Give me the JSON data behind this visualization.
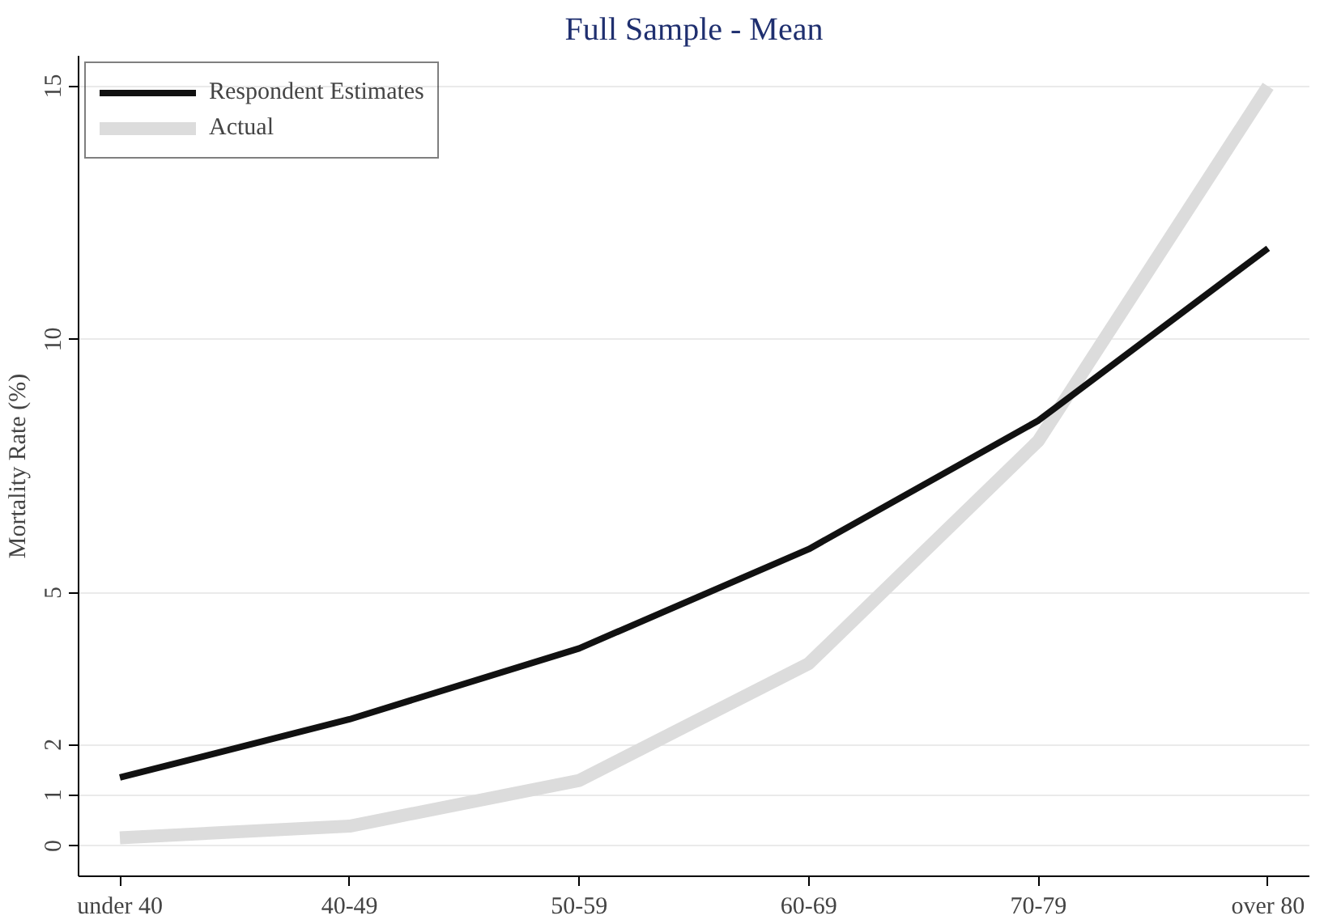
{
  "chart_data": {
    "type": "line",
    "title": "Full Sample - Mean",
    "ylabel": "Mortality Rate (%)",
    "categories": [
      "under 40",
      "40-49",
      "50-59",
      "60-69",
      "70-79",
      "over 80"
    ],
    "series": [
      {
        "name": "Respondent Estimates",
        "color": "#111111",
        "values": [
          1.35,
          2.5,
          3.9,
          5.86,
          8.4,
          11.8
        ]
      },
      {
        "name": "Actual",
        "color": "#dcdcdc",
        "values": [
          0.16,
          0.39,
          1.29,
          3.6,
          8.0,
          15.0
        ]
      }
    ],
    "ylim": [
      -0.6,
      15.6
    ],
    "yticks": [
      0,
      1,
      2,
      5,
      10,
      15
    ],
    "grid": "y",
    "legend": "top left",
    "line_style": "solid",
    "marker": "none"
  }
}
